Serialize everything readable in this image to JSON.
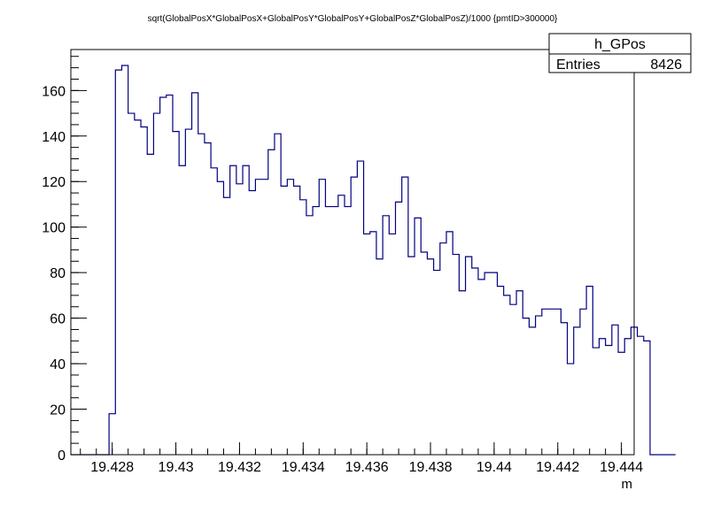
{
  "chart_data": {
    "type": "histogram",
    "title": "sqrt(GlobalPosX*GlobalPosX+GlobalPosY*GlobalPosY+GlobalPosZ*GlobalPosZ)/1000 {pmtID>300000}",
    "xlabel": "m",
    "ylabel": "",
    "xlim": [
      19.4267,
      19.4444
    ],
    "ylim": [
      0,
      178
    ],
    "x_ticks": [
      19.428,
      19.43,
      19.432,
      19.434,
      19.436,
      19.438,
      19.44,
      19.442,
      19.444
    ],
    "x_tick_labels": [
      "19.428",
      "19.43",
      "19.432",
      "19.434",
      "19.436",
      "19.438",
      "19.44",
      "19.442",
      "19.444"
    ],
    "y_ticks": [
      0,
      20,
      40,
      60,
      80,
      100,
      120,
      140,
      160
    ],
    "y_tick_labels": [
      "0",
      "20",
      "40",
      "60",
      "80",
      "100",
      "120",
      "140",
      "160"
    ],
    "line_color": "#000080",
    "bin_edges_start": 19.4267,
    "bin_width": 0.0002,
    "counts": [
      0,
      0,
      0,
      0,
      0,
      0,
      18,
      169,
      171,
      150,
      147,
      144,
      132,
      150,
      157,
      158,
      142,
      127,
      143,
      159,
      141,
      137,
      126,
      120,
      113,
      127,
      119,
      127,
      116,
      121,
      121,
      134,
      141,
      118,
      121,
      118,
      112,
      105,
      109,
      121,
      109,
      109,
      114,
      109,
      122,
      129,
      97,
      98,
      86,
      105,
      97,
      111,
      122,
      87,
      104,
      89,
      86,
      81,
      93,
      98,
      88,
      72,
      87,
      82,
      77,
      80,
      80,
      74,
      70,
      66,
      72,
      60,
      56,
      61,
      64,
      64,
      64,
      58,
      40,
      56,
      64,
      74,
      47,
      51,
      48,
      57,
      45,
      51,
      56,
      52,
      50,
      0,
      0,
      0,
      0
    ],
    "stats_box": {
      "name": "h_GPos",
      "entries_label": "Entries",
      "entries_value": "8426"
    }
  }
}
